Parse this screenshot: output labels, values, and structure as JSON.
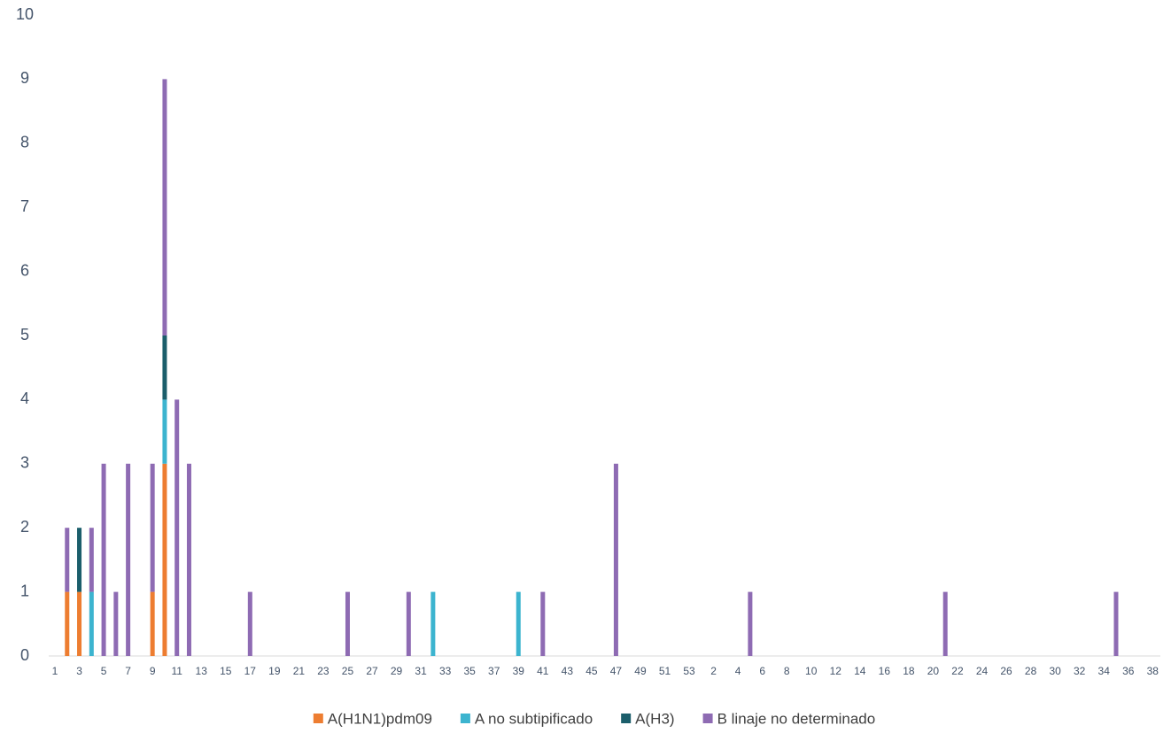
{
  "chart_data": {
    "type": "stacked-bar",
    "categories": [
      "1",
      null,
      "3",
      null,
      "5",
      null,
      "7",
      null,
      "9",
      null,
      "11",
      null,
      "13",
      null,
      "15",
      null,
      "17",
      null,
      "19",
      null,
      "21",
      null,
      "23",
      null,
      "25",
      null,
      "27",
      null,
      "29",
      null,
      "31",
      null,
      "33",
      null,
      "35",
      null,
      "37",
      null,
      "39",
      null,
      "41",
      null,
      "43",
      null,
      "45",
      null,
      "47",
      null,
      "49",
      null,
      "51",
      null,
      "53",
      null,
      "2",
      null,
      "4",
      null,
      "6",
      null,
      "8",
      null,
      "10",
      null,
      "12",
      null,
      "14",
      null,
      "16",
      null,
      "18",
      null,
      "20",
      null,
      "22",
      null,
      "24",
      null,
      "26",
      null,
      "28",
      null,
      "30",
      null,
      "32",
      null,
      "34",
      null,
      "36",
      null,
      "38"
    ],
    "series": [
      {
        "name": "A(H1N1)pdm09",
        "color": "#ed7d31",
        "values": [
          0,
          1,
          1,
          0,
          0,
          0,
          0,
          0,
          1,
          3,
          0,
          0,
          0,
          0,
          0,
          0,
          0,
          0,
          0,
          0,
          0,
          0,
          0,
          0,
          0,
          0,
          0,
          0,
          0,
          0,
          0,
          0,
          0,
          0,
          0,
          0,
          0,
          0,
          0,
          0,
          0,
          0,
          0,
          0,
          0,
          0,
          0,
          0,
          0,
          0,
          0,
          0,
          0,
          0,
          0,
          0,
          0,
          0,
          0,
          0,
          0,
          0,
          0,
          0,
          0,
          0,
          0,
          0,
          0,
          0,
          0,
          0,
          0,
          0,
          0,
          0,
          0,
          0,
          0,
          0,
          0,
          0,
          0,
          0,
          0,
          0,
          0,
          0,
          0,
          0,
          0
        ]
      },
      {
        "name": "A no subtipificado",
        "color": "#3cb4cf",
        "values": [
          0,
          0,
          0,
          1,
          0,
          0,
          0,
          0,
          0,
          1,
          0,
          0,
          0,
          0,
          0,
          0,
          0,
          0,
          0,
          0,
          0,
          0,
          0,
          0,
          0,
          0,
          0,
          0,
          0,
          0,
          0,
          1,
          0,
          0,
          0,
          0,
          0,
          0,
          1,
          0,
          0,
          0,
          0,
          0,
          0,
          0,
          0,
          0,
          0,
          0,
          0,
          0,
          0,
          0,
          0,
          0,
          0,
          0,
          0,
          0,
          0,
          0,
          0,
          0,
          0,
          0,
          0,
          0,
          0,
          0,
          0,
          0,
          0,
          0,
          0,
          0,
          0,
          0,
          0,
          0,
          0,
          0,
          0,
          0,
          0,
          0,
          0,
          0,
          0,
          0,
          0
        ]
      },
      {
        "name": "A(H3)",
        "color": "#1b5e6b",
        "values": [
          0,
          0,
          1,
          0,
          0,
          0,
          0,
          0,
          0,
          1,
          0,
          0,
          0,
          0,
          0,
          0,
          0,
          0,
          0,
          0,
          0,
          0,
          0,
          0,
          0,
          0,
          0,
          0,
          0,
          0,
          0,
          0,
          0,
          0,
          0,
          0,
          0,
          0,
          0,
          0,
          0,
          0,
          0,
          0,
          0,
          0,
          0,
          0,
          0,
          0,
          0,
          0,
          0,
          0,
          0,
          0,
          0,
          0,
          0,
          0,
          0,
          0,
          0,
          0,
          0,
          0,
          0,
          0,
          0,
          0,
          0,
          0,
          0,
          0,
          0,
          0,
          0,
          0,
          0,
          0,
          0,
          0,
          0,
          0,
          0,
          0,
          0,
          0,
          0,
          0,
          0
        ]
      },
      {
        "name": "B linaje no determinado",
        "color": "#8e6bb3",
        "values": [
          0,
          1,
          0,
          1,
          3,
          1,
          3,
          0,
          2,
          4,
          4,
          3,
          0,
          0,
          0,
          0,
          1,
          0,
          0,
          0,
          0,
          0,
          0,
          0,
          1,
          0,
          0,
          0,
          0,
          1,
          0,
          0,
          0,
          0,
          0,
          0,
          0,
          0,
          0,
          0,
          1,
          0,
          0,
          0,
          0,
          0,
          3,
          0,
          0,
          0,
          0,
          0,
          0,
          0,
          0,
          0,
          0,
          1,
          0,
          0,
          0,
          0,
          0,
          0,
          0,
          0,
          0,
          0,
          0,
          0,
          0,
          0,
          0,
          1,
          0,
          0,
          0,
          0,
          0,
          0,
          0,
          0,
          0,
          0,
          0,
          0,
          0,
          1,
          0,
          0,
          0
        ]
      }
    ],
    "ylim": [
      0,
      10
    ],
    "yticks": [
      0,
      1,
      2,
      3,
      4,
      5,
      6,
      7,
      8,
      9,
      10
    ],
    "grid": false,
    "legend": "bottom"
  }
}
